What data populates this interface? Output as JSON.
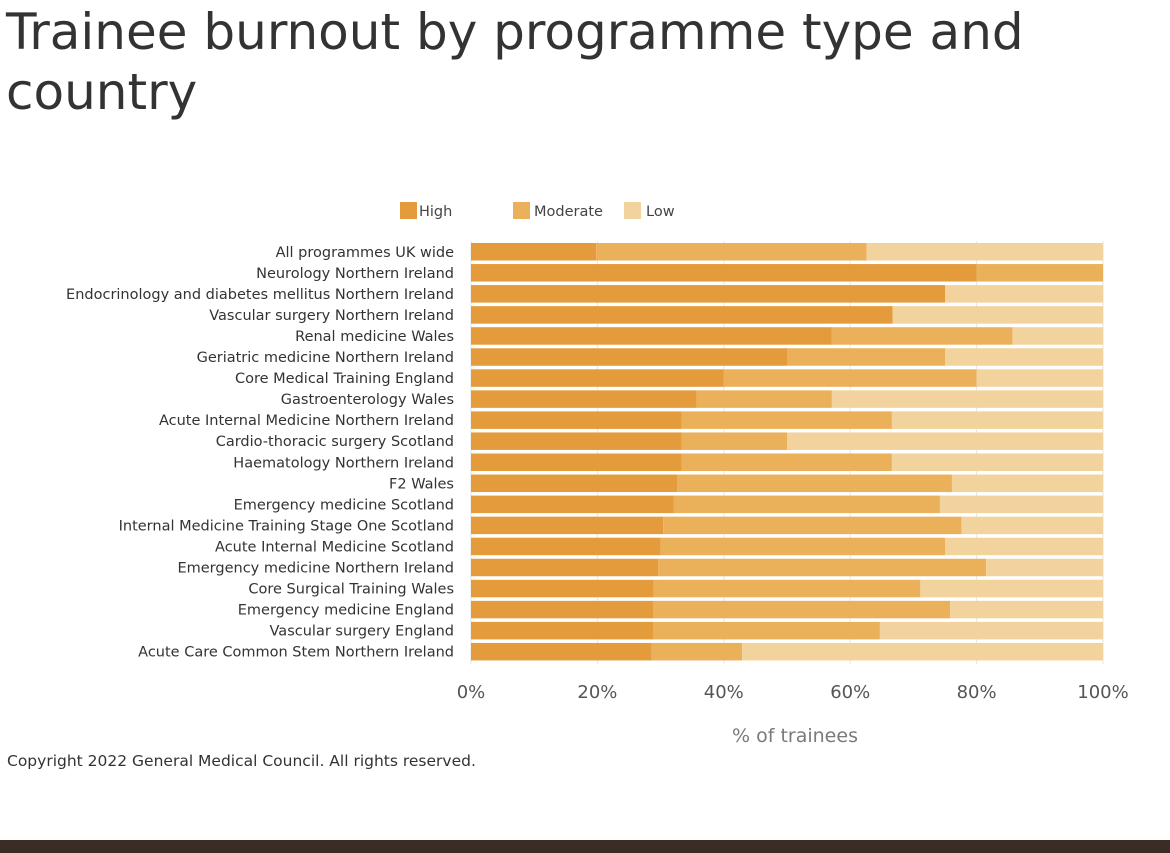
{
  "page": {
    "title": "Trainee burnout by programme type and country",
    "copyright": "Copyright 2022 General Medical Council. All rights reserved."
  },
  "chart_data": {
    "type": "bar",
    "orientation": "horizontal",
    "stacked": true,
    "title": "Trainee burnout by programme type and country",
    "xlabel": "% of trainees",
    "ylabel": "",
    "xlim": [
      0,
      100
    ],
    "x_ticks": [
      "0%",
      "20%",
      "40%",
      "60%",
      "80%",
      "100%"
    ],
    "grid": true,
    "legend_position": "top",
    "categories": [
      "All programmes UK wide",
      "Neurology Northern Ireland",
      "Endocrinology and diabetes mellitus Northern Ireland",
      "Vascular surgery Northern Ireland",
      "Renal medicine Wales",
      "Geriatric medicine Northern Ireland",
      "Core Medical Training England",
      "Gastroenterology Wales",
      "Acute Internal Medicine Northern Ireland",
      "Cardio-thoracic surgery Scotland",
      "Haematology Northern Ireland",
      "F2 Wales",
      "Emergency medicine Scotland",
      "Internal Medicine Training Stage One Scotland",
      "Acute Internal Medicine Scotland",
      "Emergency medicine Northern Ireland",
      "Core Surgical Training Wales",
      "Emergency medicine England",
      "Vascular surgery England",
      "Acute Care Common Stem Northern Ireland"
    ],
    "series": [
      {
        "name": "High",
        "color": "#e49b3c",
        "values": [
          19.8,
          80,
          75,
          66.7,
          57.1,
          50,
          40,
          35.7,
          33.3,
          33.3,
          33.3,
          32.6,
          32.1,
          30.4,
          30,
          29.6,
          28.9,
          28.8,
          28.8,
          28.6
        ]
      },
      {
        "name": "Moderate",
        "color": "#eab05a",
        "values": [
          42.8,
          20,
          0,
          0,
          28.6,
          25,
          40,
          21.4,
          33.3,
          16.7,
          33.3,
          43.5,
          42.1,
          47.2,
          45,
          51.9,
          42.2,
          47,
          35.9,
          14.3
        ]
      },
      {
        "name": "Low",
        "color": "#f3d39d",
        "values": [
          37.4,
          0,
          25,
          33.3,
          14.3,
          25,
          20,
          42.9,
          33.4,
          50,
          33.4,
          23.9,
          25.8,
          22.4,
          25,
          18.5,
          28.9,
          24.2,
          35.3,
          57.1
        ]
      }
    ]
  }
}
